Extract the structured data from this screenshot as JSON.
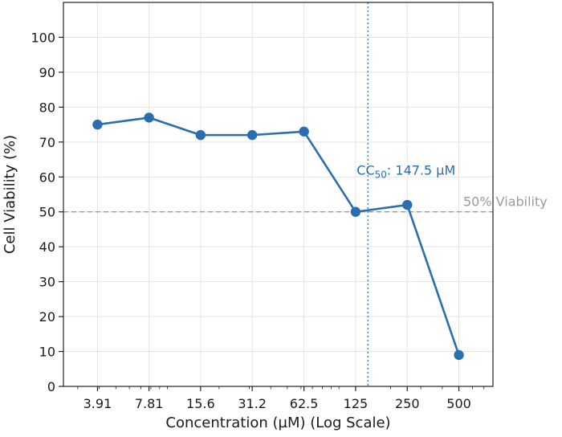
{
  "chart_data": {
    "type": "line",
    "xlabel": "Concentration (µM) (Log Scale)",
    "ylabel": "Cell Viability (%)",
    "x_scale": "log",
    "x": [
      3.91,
      7.81,
      15.6,
      31.2,
      62.5,
      125,
      250,
      500
    ],
    "x_tick_labels": [
      "3.91",
      "7.81",
      "15.6",
      "31.2",
      "62.5",
      "125",
      "250",
      "500"
    ],
    "y_ticks": [
      0,
      10,
      20,
      30,
      40,
      50,
      60,
      70,
      80,
      90,
      100
    ],
    "ylim": [
      0,
      110
    ],
    "grid": true,
    "series": [
      {
        "values": [
          75,
          77,
          72,
          72,
          73,
          50,
          52,
          9
        ],
        "color": "#2a6eb0"
      }
    ],
    "annotations": {
      "hline": {
        "y": 50,
        "text": "50% Viability",
        "color": "#9a9a9a"
      },
      "vline": {
        "x": 147.5,
        "color": "#4a90c4"
      },
      "cc50": {
        "prefix": "CC",
        "subscript": "50",
        "suffix": ": 147.5 µM",
        "color": "#2a6eb0"
      }
    }
  }
}
